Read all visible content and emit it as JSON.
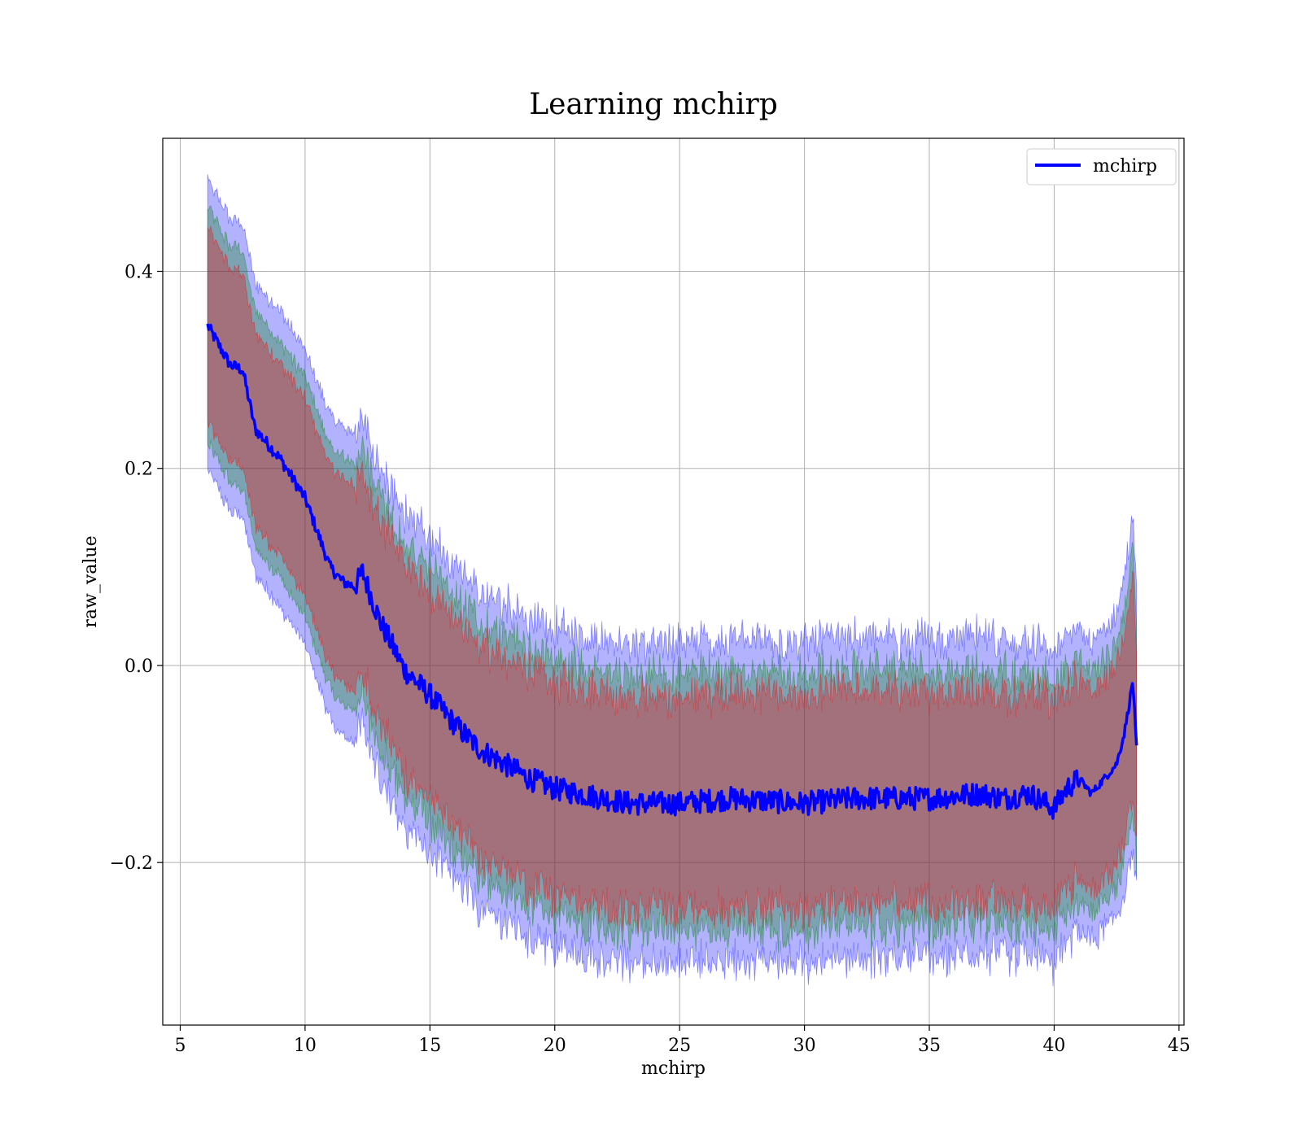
{
  "chart_data": {
    "type": "line",
    "title": "Learning mchirp",
    "xlabel": "mchirp",
    "ylabel": "raw_value",
    "xlim": [
      4.3,
      45.2
    ],
    "ylim": [
      -0.365,
      0.535
    ],
    "xticks": [
      5,
      10,
      15,
      20,
      25,
      30,
      35,
      40,
      45
    ],
    "xtick_labels": [
      "5",
      "10",
      "15",
      "20",
      "25",
      "30",
      "35",
      "40",
      "45"
    ],
    "yticks": [
      -0.2,
      0.0,
      0.2,
      0.4
    ],
    "ytick_labels": [
      "−0.2",
      "0.0",
      "0.2",
      "0.4"
    ],
    "grid": true,
    "legend": {
      "position": "upper right",
      "entries": [
        {
          "name": "mchirp",
          "color": "#0000ff"
        }
      ]
    },
    "series": [
      {
        "name": "mchirp",
        "color": "#0000ff",
        "x": [
          6.1,
          7.0,
          7.5,
          8.0,
          9.0,
          10.0,
          10.5,
          11.0,
          11.5,
          12.0,
          12.3,
          13.0,
          13.5,
          14.0,
          15.0,
          16.0,
          17.0,
          18.0,
          19.0,
          20.0,
          21.0,
          22.0,
          23.0,
          25.0,
          27.0,
          30.0,
          32.0,
          35.0,
          37.0,
          38.0,
          39.0,
          40.0,
          40.5,
          41.0,
          41.5,
          42.0,
          42.5,
          42.8,
          43.0,
          43.15,
          43.3
        ],
        "y": [
          0.345,
          0.305,
          0.3,
          0.24,
          0.21,
          0.17,
          0.135,
          0.1,
          0.085,
          0.08,
          0.095,
          0.045,
          0.02,
          -0.005,
          -0.03,
          -0.06,
          -0.085,
          -0.1,
          -0.115,
          -0.125,
          -0.13,
          -0.135,
          -0.14,
          -0.14,
          -0.135,
          -0.14,
          -0.135,
          -0.135,
          -0.13,
          -0.135,
          -0.13,
          -0.145,
          -0.125,
          -0.115,
          -0.13,
          -0.115,
          -0.1,
          -0.07,
          -0.04,
          -0.015,
          -0.085
        ]
      }
    ],
    "bands": [
      {
        "name": "outer",
        "color": "#0000ff",
        "opacity": 0.3,
        "half_width": [
          0.148,
          0.148,
          0.148,
          0.148,
          0.15,
          0.15,
          0.152,
          0.155,
          0.157,
          0.157,
          0.157,
          0.157,
          0.158,
          0.16,
          0.16,
          0.16,
          0.16,
          0.162,
          0.162,
          0.162,
          0.162,
          0.162,
          0.162,
          0.162,
          0.162,
          0.162,
          0.162,
          0.162,
          0.16,
          0.16,
          0.16,
          0.158,
          0.155,
          0.152,
          0.15,
          0.152,
          0.155,
          0.16,
          0.165,
          0.17,
          0.15
        ]
      },
      {
        "name": "middle",
        "color": "#008000",
        "opacity": 0.3,
        "half_width": [
          0.12,
          0.12,
          0.12,
          0.12,
          0.12,
          0.122,
          0.122,
          0.124,
          0.126,
          0.126,
          0.126,
          0.126,
          0.127,
          0.128,
          0.128,
          0.128,
          0.128,
          0.13,
          0.13,
          0.13,
          0.13,
          0.13,
          0.13,
          0.13,
          0.13,
          0.13,
          0.13,
          0.13,
          0.128,
          0.128,
          0.128,
          0.126,
          0.124,
          0.122,
          0.12,
          0.122,
          0.124,
          0.128,
          0.132,
          0.135,
          0.12
        ]
      },
      {
        "name": "inner",
        "color": "#ff0000",
        "opacity": 0.3,
        "half_width": [
          0.098,
          0.098,
          0.098,
          0.098,
          0.098,
          0.1,
          0.1,
          0.102,
          0.104,
          0.104,
          0.104,
          0.104,
          0.105,
          0.106,
          0.106,
          0.106,
          0.106,
          0.108,
          0.108,
          0.108,
          0.108,
          0.108,
          0.108,
          0.108,
          0.108,
          0.108,
          0.108,
          0.108,
          0.106,
          0.106,
          0.106,
          0.104,
          0.102,
          0.1,
          0.098,
          0.1,
          0.102,
          0.106,
          0.11,
          0.112,
          0.098
        ]
      }
    ]
  }
}
